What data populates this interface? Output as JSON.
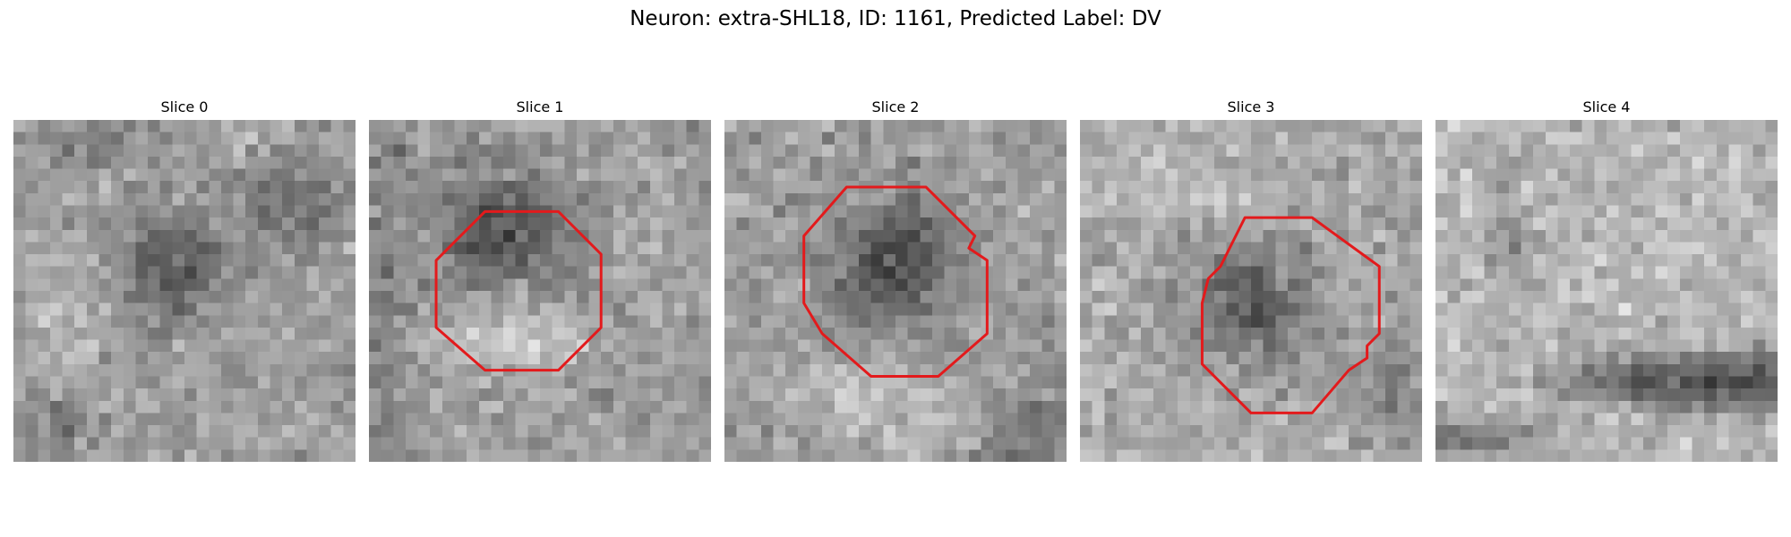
{
  "figure": {
    "title": "Neuron: extra-SHL18, ID: 1161, Predicted Label: DV",
    "contour_color": "#e31a1c",
    "colormap": "grayscale",
    "grid_size": 28
  },
  "panels": [
    {
      "title": "Slice 0",
      "has_contour": false
    },
    {
      "title": "Slice 1",
      "has_contour": true
    },
    {
      "title": "Slice 2",
      "has_contour": true
    },
    {
      "title": "Slice 3",
      "has_contour": true
    },
    {
      "title": "Slice 4",
      "has_contour": false
    }
  ]
}
